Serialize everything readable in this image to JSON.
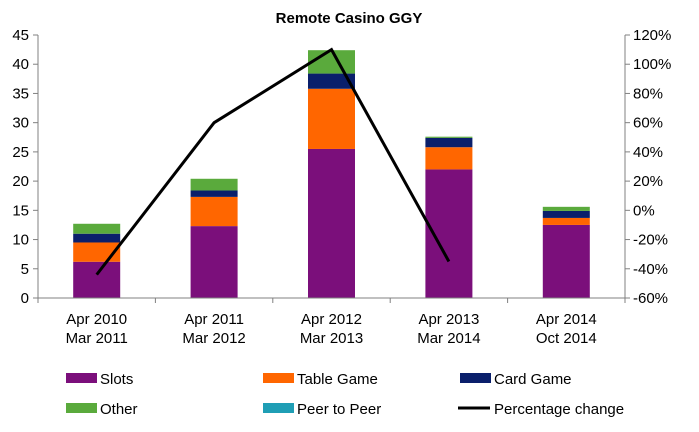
{
  "chart_data": {
    "type": "bar",
    "stacked": true,
    "title": "Remote Casino GGY",
    "categories": [
      [
        "Apr 2010",
        "Mar 2011"
      ],
      [
        "Apr 2011",
        "Mar 2012"
      ],
      [
        "Apr 2012",
        "Mar 2013"
      ],
      [
        "Apr 2013",
        "Mar 2014"
      ],
      [
        "Apr 2014",
        "Oct 2014"
      ]
    ],
    "series": [
      {
        "name": "Slots",
        "color": "#7b0f7b",
        "values": [
          6.2,
          12.3,
          25.5,
          22.0,
          12.5
        ]
      },
      {
        "name": "Table Game",
        "color": "#ff6600",
        "values": [
          3.3,
          5.0,
          10.3,
          3.8,
          1.2
        ]
      },
      {
        "name": "Card Game",
        "color": "#0a1f6b",
        "values": [
          1.5,
          1.1,
          2.6,
          1.6,
          1.2
        ]
      },
      {
        "name": "Other",
        "color": "#5aaa3c",
        "values": [
          1.7,
          2.0,
          4.0,
          0.2,
          0.7
        ]
      },
      {
        "name": "Peer to Peer",
        "color": "#1f9eb5",
        "values": [
          0,
          0,
          0,
          0,
          0
        ]
      }
    ],
    "line_series": {
      "name": "Percentage change",
      "color": "#000000",
      "axis": "right",
      "values": [
        -44,
        60,
        110,
        -35,
        null
      ]
    },
    "y_left": {
      "min": 0,
      "max": 45,
      "step": 5
    },
    "y_right": {
      "min": -60,
      "max": 120,
      "step": 20,
      "unit": "%"
    },
    "legend_position": "bottom",
    "grid": false
  }
}
